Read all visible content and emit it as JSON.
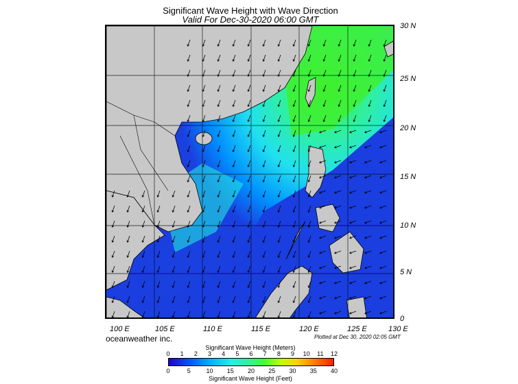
{
  "title": "Significant Wave Height with Wave Direction",
  "subtitle": "Valid For Dec-30-2020 06:00 GMT",
  "lon_labels": [
    "100 E",
    "105 E",
    "110 E",
    "115 E",
    "120 E",
    "125 E",
    "130 E"
  ],
  "lat_labels": [
    "30 N",
    "25 N",
    "20 N",
    "15 N",
    "10 N",
    "5 N",
    "0"
  ],
  "credit": "oceanweather inc.",
  "plotted": "Plotted at Dec 30, 2020 02:05 GMT",
  "colorbar": {
    "meters_title": "Significant Wave Height (Meters)",
    "feet_title": "Significant Wave Height (Feet)",
    "meters_ticks": [
      "0",
      "1",
      "2",
      "3",
      "4",
      "5",
      "6",
      "7",
      "8",
      "9",
      "10",
      "11",
      "12"
    ],
    "feet_ticks": [
      "0",
      "5",
      "10",
      "15",
      "20",
      "25",
      "30",
      "35",
      "40"
    ]
  },
  "colors": {
    "land": "#c8c8c8",
    "low_wave": "#2040e0",
    "mid_wave": "#20e0f0",
    "high_wave": "#40f020",
    "arrows": "#000000"
  }
}
